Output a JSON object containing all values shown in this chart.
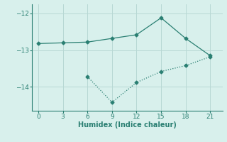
{
  "line1_x": [
    0,
    3,
    6,
    9,
    12,
    15,
    18,
    21
  ],
  "line1_y": [
    -12.82,
    -12.8,
    -12.78,
    -12.68,
    -12.58,
    -12.12,
    -12.68,
    -13.15
  ],
  "line2_x": [
    6,
    9,
    12,
    15,
    18,
    21
  ],
  "line2_y": [
    -13.72,
    -14.42,
    -13.88,
    -13.58,
    -13.42,
    -13.18
  ],
  "line_color": "#2a7f72",
  "bg_color": "#d8f0ec",
  "xlabel": "Humidex (Indice chaleur)",
  "yticks": [
    -12,
    -13,
    -14
  ],
  "xticks": [
    0,
    3,
    6,
    9,
    12,
    15,
    18,
    21
  ],
  "xlim": [
    -0.8,
    22.5
  ],
  "ylim": [
    -14.65,
    -11.75
  ],
  "grid_color": "#b8d8d4",
  "marker": "D",
  "markersize": 2.5,
  "linewidth": 0.9
}
